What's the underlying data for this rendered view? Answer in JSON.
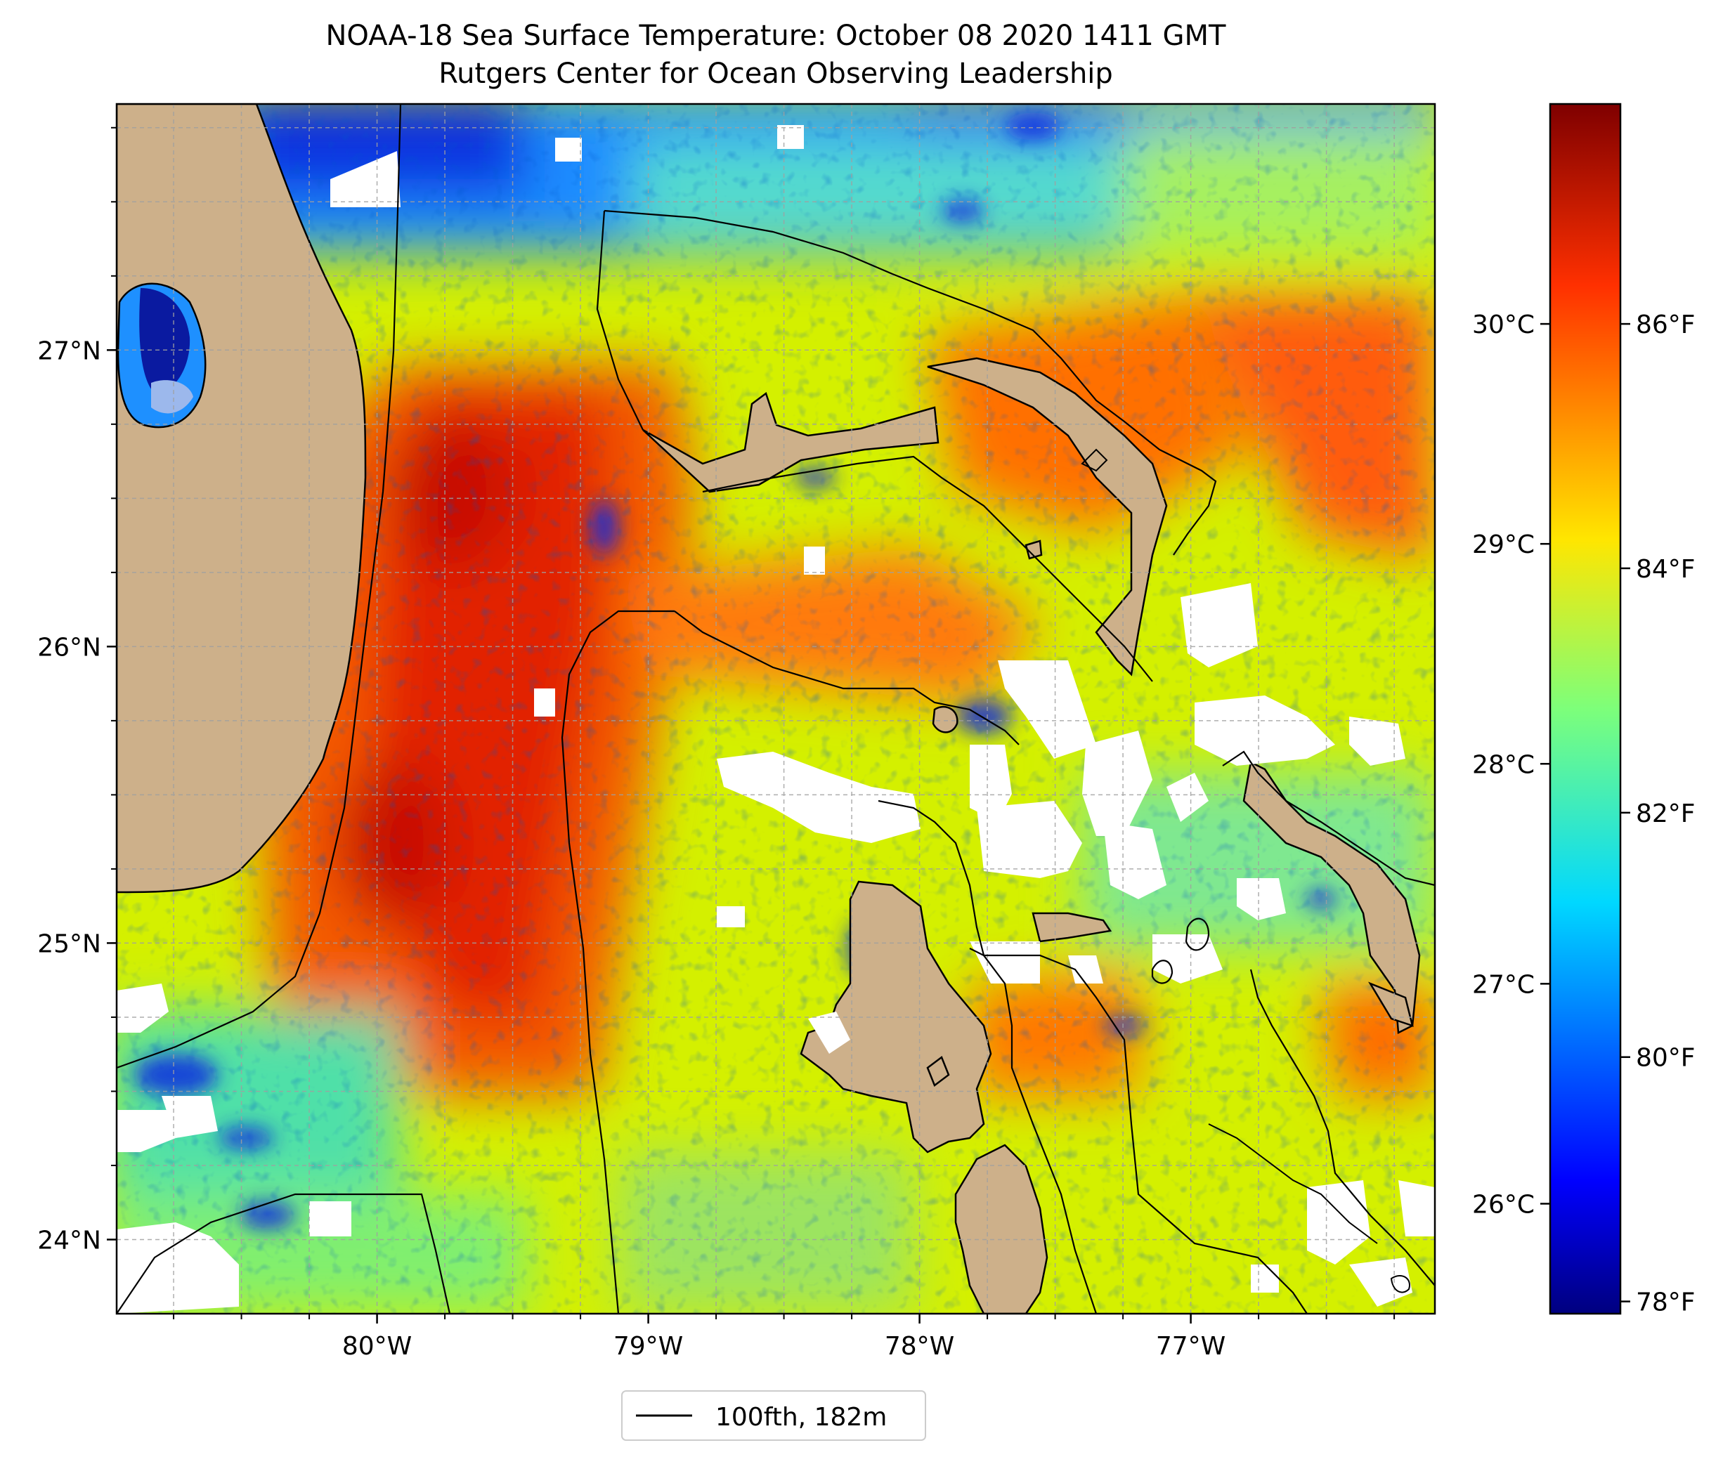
{
  "title": {
    "line1": "NOAA-18 Sea Surface Temperature: October 08 2020 1411 GMT",
    "line2": "Rutgers Center for Ocean Observing Leadership"
  },
  "map": {
    "lon_range": [
      -80.96,
      -76.1
    ],
    "lat_range": [
      23.75,
      27.83
    ],
    "x_ticks": [
      {
        "value": -80,
        "label": "80°W"
      },
      {
        "value": -79,
        "label": "79°W"
      },
      {
        "value": -78,
        "label": "78°W"
      },
      {
        "value": -77,
        "label": "77°W"
      }
    ],
    "y_ticks": [
      {
        "value": 24,
        "label": "24°N"
      },
      {
        "value": 25,
        "label": "25°N"
      },
      {
        "value": 26,
        "label": "26°N"
      },
      {
        "value": 27,
        "label": "27°N"
      }
    ],
    "gridlines": true,
    "land_color": "#cdb08a",
    "cloud_color": "#ffffff",
    "contour_color": "#000000"
  },
  "colorbar": {
    "colormap": "jet",
    "range_f": [
      77.9,
      87.8
    ],
    "celsius_ticks": [
      {
        "value": 26,
        "label": "26°C"
      },
      {
        "value": 27,
        "label": "27°C"
      },
      {
        "value": 28,
        "label": "28°C"
      },
      {
        "value": 29,
        "label": "29°C"
      },
      {
        "value": 30,
        "label": "30°C"
      }
    ],
    "fahrenheit_ticks": [
      {
        "value": 78,
        "label": "78°F"
      },
      {
        "value": 80,
        "label": "80°F"
      },
      {
        "value": 82,
        "label": "82°F"
      },
      {
        "value": 84,
        "label": "84°F"
      },
      {
        "value": 86,
        "label": "86°F"
      }
    ]
  },
  "legend": {
    "label": "100fth, 182m",
    "line_color": "#000000"
  }
}
